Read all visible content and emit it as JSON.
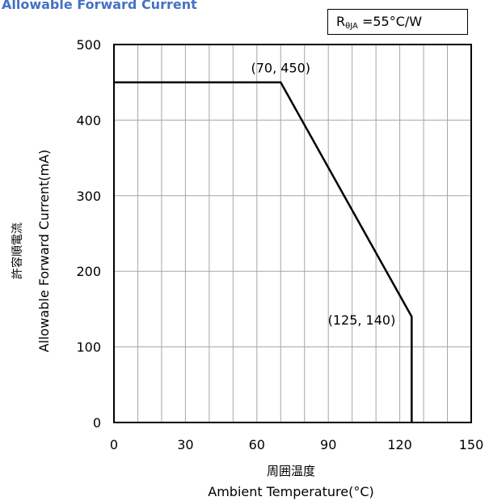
{
  "title": "Allowable Forward Current",
  "param_box": {
    "symbol": "R",
    "subscript": "θJA",
    "value": " =55°C/W"
  },
  "chart_data": {
    "type": "line",
    "title": "Allowable Forward Current",
    "xlabel_ja": "周囲温度",
    "xlabel": "Ambient Temperature(°C)",
    "ylabel_ja": "許容順電流",
    "ylabel": "Allowable Forward Current(mA)",
    "xlim": [
      0,
      150
    ],
    "ylim": [
      0,
      500
    ],
    "x_ticks": [
      0,
      30,
      60,
      90,
      120,
      150
    ],
    "y_ticks": [
      0,
      100,
      200,
      300,
      400,
      500
    ],
    "grid": true,
    "series": [
      {
        "x": [
          0,
          70,
          125,
          125
        ],
        "y": [
          450,
          450,
          140,
          0
        ]
      }
    ],
    "annotations": [
      {
        "text": "(70, 450)",
        "x": 70,
        "y": 450
      },
      {
        "text": "(125, 140)",
        "x": 125,
        "y": 140
      }
    ],
    "colors": {
      "line": "#000000",
      "grid": "#a6a6a6",
      "title": "#4472c4"
    }
  }
}
